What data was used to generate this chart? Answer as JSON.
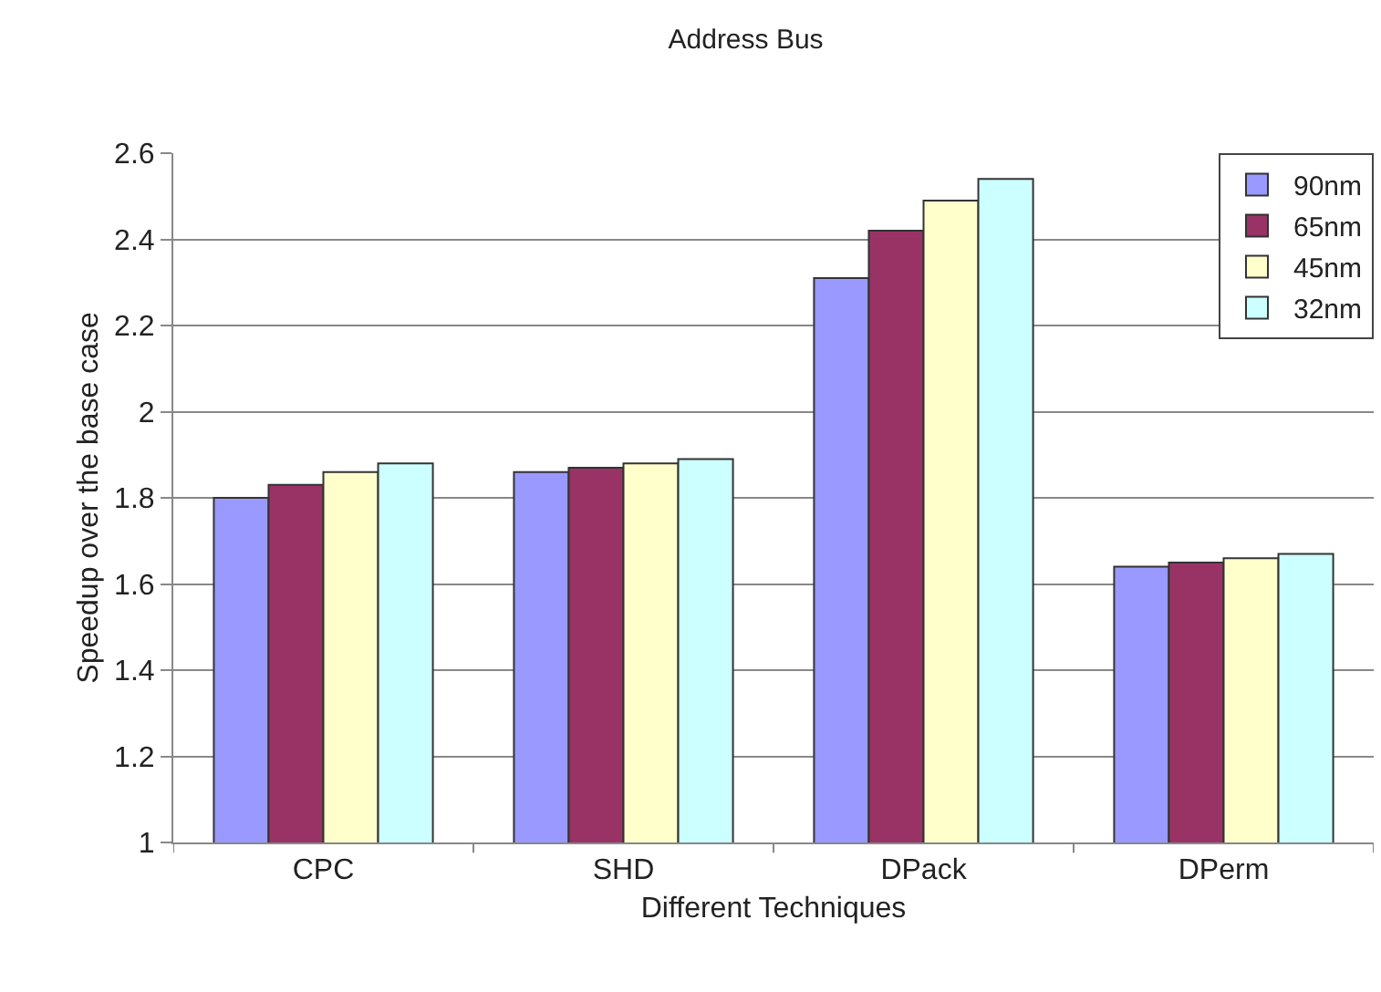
{
  "chart_data": {
    "type": "bar",
    "title": "Address Bus",
    "xlabel": "Different Techniques",
    "ylabel": "Speedup over the base case",
    "categories": [
      "CPC",
      "SHD",
      "DPack",
      "DPerm"
    ],
    "series": [
      {
        "name": "90nm",
        "color": "#9999ff",
        "values": [
          1.8,
          1.86,
          2.31,
          1.64
        ]
      },
      {
        "name": "65nm",
        "color": "#993366",
        "values": [
          1.83,
          1.87,
          2.42,
          1.65
        ]
      },
      {
        "name": "45nm",
        "color": "#ffffcc",
        "values": [
          1.86,
          1.88,
          2.49,
          1.66
        ]
      },
      {
        "name": "32nm",
        "color": "#ccffff",
        "values": [
          1.88,
          1.89,
          2.54,
          1.67
        ]
      }
    ],
    "ylim": [
      1,
      2.6
    ],
    "yticks": [
      1,
      1.2,
      1.4,
      1.6,
      1.8,
      2,
      2.2,
      2.4,
      2.6
    ],
    "grid": "y",
    "legend": "top right"
  }
}
